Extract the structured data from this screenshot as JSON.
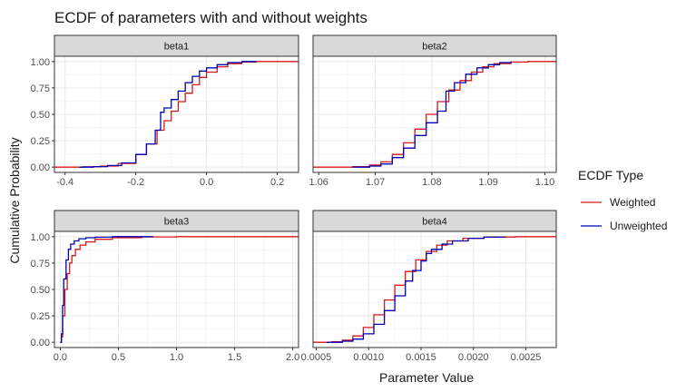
{
  "chart_data": {
    "type": "line",
    "title": "ECDF of parameters with and without weights",
    "xlabel": "Parameter Value",
    "ylabel": "Cumulative Probability",
    "legend": {
      "title": "ECDF Type",
      "placement": "right",
      "entries": [
        {
          "name": "Weighted",
          "color": "#d7191c"
        },
        {
          "name": "Unweighted",
          "color": "#0000b3"
        }
      ]
    },
    "grid": true,
    "y_ticks": [
      "0.00",
      "0.25",
      "0.50",
      "0.75",
      "1.00"
    ],
    "ylim": [
      -0.05,
      1.05
    ],
    "panels": [
      {
        "label": "beta1",
        "xlim": [
          -0.43,
          0.26
        ],
        "x_ticks": [
          -0.4,
          -0.2,
          0.0,
          0.2
        ],
        "x_tick_labels": [
          "-0.4",
          "-0.2",
          "0.0",
          "0.2"
        ],
        "series": [
          {
            "name": "Weighted",
            "x": [
              -0.43,
              -0.35,
              -0.3,
              -0.25,
              -0.2,
              -0.17,
              -0.14,
              -0.12,
              -0.1,
              -0.08,
              -0.06,
              -0.04,
              -0.02,
              0.0,
              0.03,
              0.06,
              0.1,
              0.14,
              0.2,
              0.26
            ],
            "y": [
              0.0,
              0.003,
              0.01,
              0.035,
              0.12,
              0.22,
              0.35,
              0.44,
              0.53,
              0.62,
              0.7,
              0.78,
              0.85,
              0.9,
              0.95,
              0.98,
              0.995,
              1.0,
              1.0,
              1.0
            ]
          },
          {
            "name": "Unweighted",
            "x": [
              -0.36,
              -0.32,
              -0.28,
              -0.24,
              -0.2,
              -0.17,
              -0.145,
              -0.13,
              -0.13,
              -0.12,
              -0.1,
              -0.08,
              -0.06,
              -0.04,
              -0.02,
              0.0,
              0.03,
              0.06,
              0.1,
              0.14
            ],
            "y": [
              0.0,
              0.005,
              0.015,
              0.04,
              0.12,
              0.22,
              0.35,
              0.42,
              0.52,
              0.56,
              0.64,
              0.72,
              0.8,
              0.86,
              0.91,
              0.94,
              0.97,
              0.99,
              1.0,
              1.0
            ]
          }
        ]
      },
      {
        "label": "beta2",
        "xlim": [
          1.059,
          1.102
        ],
        "x_ticks": [
          1.06,
          1.07,
          1.08,
          1.09,
          1.1
        ],
        "x_tick_labels": [
          "1.06",
          "1.07",
          "1.08",
          "1.09",
          "1.10"
        ],
        "series": [
          {
            "name": "Weighted",
            "x": [
              1.059,
              1.066,
              1.069,
              1.071,
              1.073,
              1.075,
              1.077,
              1.079,
              1.081,
              1.083,
              1.085,
              1.087,
              1.089,
              1.091,
              1.094,
              1.097,
              1.102
            ],
            "y": [
              0.0,
              0.005,
              0.02,
              0.05,
              0.12,
              0.23,
              0.36,
              0.5,
              0.62,
              0.73,
              0.82,
              0.9,
              0.95,
              0.98,
              0.995,
              1.0,
              1.0
            ]
          },
          {
            "name": "Unweighted",
            "x": [
              1.066,
              1.069,
              1.071,
              1.073,
              1.075,
              1.077,
              1.079,
              1.081,
              1.0825,
              1.0825,
              1.084,
              1.086,
              1.088,
              1.09,
              1.092,
              1.094
            ],
            "y": [
              0.0,
              0.01,
              0.03,
              0.09,
              0.18,
              0.3,
              0.42,
              0.53,
              0.62,
              0.72,
              0.8,
              0.88,
              0.94,
              0.97,
              0.99,
              1.0
            ]
          }
        ]
      },
      {
        "label": "beta3",
        "xlim": [
          -0.05,
          2.05
        ],
        "x_ticks": [
          0.0,
          0.5,
          1.0,
          1.5,
          2.0
        ],
        "x_tick_labels": [
          "0.0",
          "0.5",
          "1.0",
          "1.5",
          "2.0"
        ],
        "series": [
          {
            "name": "Weighted",
            "x": [
              0.0,
              0.01,
              0.02,
              0.04,
              0.06,
              0.08,
              0.1,
              0.13,
              0.17,
              0.22,
              0.3,
              0.45,
              0.7,
              1.0,
              1.5,
              2.05
            ],
            "y": [
              0.0,
              0.05,
              0.25,
              0.5,
              0.65,
              0.75,
              0.82,
              0.88,
              0.92,
              0.95,
              0.975,
              0.99,
              0.998,
              1.0,
              1.0,
              1.0
            ]
          },
          {
            "name": "Unweighted",
            "x": [
              0.0,
              0.01,
              0.02,
              0.03,
              0.05,
              0.07,
              0.09,
              0.12,
              0.16,
              0.22,
              0.3,
              0.45,
              0.6,
              0.8
            ],
            "y": [
              0.0,
              0.08,
              0.35,
              0.6,
              0.78,
              0.88,
              0.93,
              0.96,
              0.98,
              0.99,
              0.995,
              1.0,
              1.0,
              1.0
            ]
          }
        ]
      },
      {
        "label": "beta4",
        "xlim": [
          0.00047,
          0.00279
        ],
        "x_ticks": [
          0.0005,
          0.001,
          0.0015,
          0.002,
          0.0025
        ],
        "x_tick_labels": [
          "0.0005",
          "0.0010",
          "0.0015",
          "0.0020",
          "0.0025"
        ],
        "series": [
          {
            "name": "Weighted",
            "x": [
              0.00047,
              0.00065,
              0.00075,
              0.00085,
              0.00095,
              0.00105,
              0.00115,
              0.00125,
              0.00135,
              0.00145,
              0.00155,
              0.00165,
              0.00175,
              0.0019,
              0.0021,
              0.0024,
              0.00279
            ],
            "y": [
              0.0,
              0.005,
              0.02,
              0.06,
              0.14,
              0.26,
              0.4,
              0.54,
              0.67,
              0.78,
              0.86,
              0.92,
              0.96,
              0.985,
              0.997,
              1.0,
              1.0
            ]
          },
          {
            "name": "Unweighted",
            "x": [
              0.0006,
              0.00075,
              0.00085,
              0.00095,
              0.00105,
              0.00115,
              0.00125,
              0.00135,
              0.00142,
              0.0015,
              0.00155,
              0.0016,
              0.0017,
              0.0018,
              0.00195,
              0.0021,
              0.0023
            ],
            "y": [
              0.0,
              0.01,
              0.03,
              0.08,
              0.17,
              0.3,
              0.44,
              0.58,
              0.68,
              0.77,
              0.84,
              0.88,
              0.93,
              0.96,
              0.985,
              0.995,
              1.0
            ]
          }
        ]
      }
    ]
  }
}
